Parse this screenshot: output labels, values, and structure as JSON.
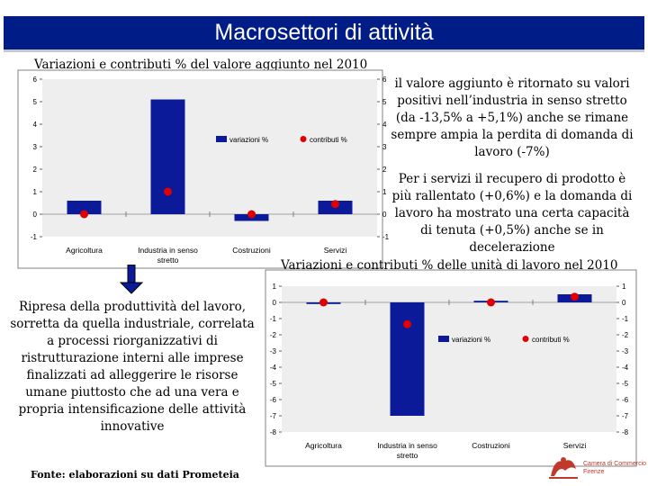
{
  "title": "Macrosettori di attività",
  "chart_data": [
    {
      "type": "bar",
      "title": "Variazioni e contributi % del valore aggiunto nel 2010",
      "categories": [
        "Agricoltura",
        "Industria in senso stretto",
        "Costruzioni",
        "Servizi"
      ],
      "series": [
        {
          "name": "variazioni %",
          "kind": "bar",
          "axis": "left",
          "values": [
            0.6,
            5.1,
            -0.3,
            0.6
          ]
        },
        {
          "name": "contributi %",
          "kind": "point",
          "axis": "right",
          "values": [
            0.0,
            1.0,
            0.0,
            0.45
          ]
        }
      ],
      "ylim_left": [
        -1,
        6
      ],
      "ylim_right": [
        -1,
        6
      ],
      "yticks_left": [
        "-1",
        "0",
        "1",
        "2",
        "3",
        "4",
        "5",
        "6"
      ],
      "yticks_right": [
        "-1",
        "0",
        "1",
        "2",
        "3",
        "4",
        "5",
        "6"
      ],
      "legend": "top-right",
      "colors": {
        "bar": "#0b1a99",
        "point": "#e00000",
        "plot_bg": "#eeeeee"
      }
    },
    {
      "type": "bar",
      "title": "Variazioni e contributi % delle unità di lavoro nel 2010",
      "categories": [
        "Agricoltura",
        "Industria in senso stretto",
        "Costruzioni",
        "Servizi"
      ],
      "series": [
        {
          "name": "variazioni %",
          "kind": "bar",
          "axis": "left",
          "values": [
            -0.1,
            -7.0,
            0.1,
            0.5
          ]
        },
        {
          "name": "contributi %",
          "kind": "point",
          "axis": "right",
          "values": [
            0.0,
            -1.35,
            0.0,
            0.35
          ]
        }
      ],
      "ylim_left": [
        -8,
        1
      ],
      "ylim_right": [
        -8,
        1
      ],
      "yticks_left": [
        "-8",
        "-7",
        "-6",
        "-5",
        "-4",
        "-3",
        "-2",
        "-1",
        "0",
        "1"
      ],
      "yticks_right": [
        "-8",
        "-7",
        "-6",
        "-5",
        "-4",
        "-3",
        "-2",
        "-1",
        "0",
        "1"
      ],
      "legend": "top-right",
      "colors": {
        "bar": "#0b1a99",
        "point": "#e00000",
        "plot_bg": "#eeeeee"
      }
    }
  ],
  "text": {
    "right_para1": "il valore aggiunto è ritornato su valori positivi nell’industria in senso stretto (da -13,5% a +5,1%) anche se rimane sempre ampia la perdita di domanda di lavoro (-7%)",
    "right_para2": "Per i servizi il recupero di prodotto è più rallentato (+0,6%) e la domanda di lavoro ha mostrato una certa capacità di tenuta (+0,5%) anche se in decelerazione",
    "left_para": "Ripresa della produttività del lavoro, sorretta da quella industriale, correlata a processi riorganizzativi di ristrutturazione interni alle imprese finalizzati ad alleggerire le risorse umane piuttosto che ad una vera e propria intensificazione delle attività innovative",
    "source": "Fonte: elaborazioni su dati Prometeia",
    "logo_line1": "Camera di Commercio",
    "logo_line2": "Firenze"
  }
}
